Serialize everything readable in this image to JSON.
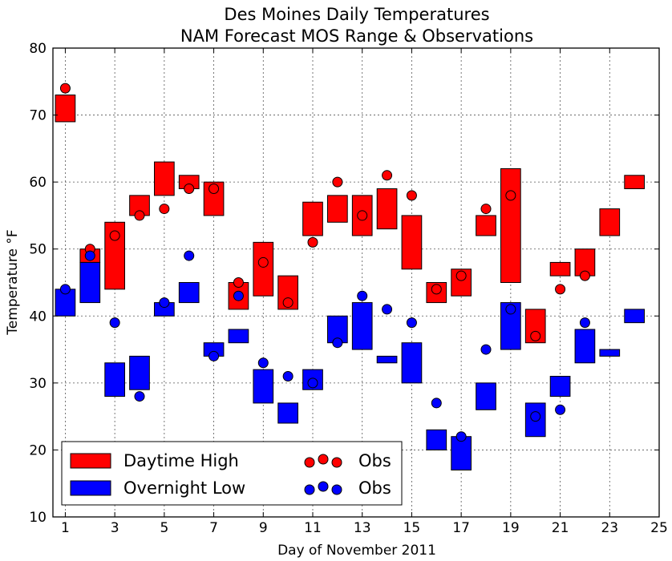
{
  "chart_data": {
    "type": "range-bar-scatter",
    "title": "Des Moines Daily Temperatures",
    "subtitle": "NAM Forecast MOS Range & Observations",
    "xlabel": "Day of November 2011",
    "ylabel": "Temperature °F",
    "xlim": [
      0.5,
      25
    ],
    "ylim": [
      10,
      80
    ],
    "xticks": [
      1,
      3,
      5,
      7,
      9,
      11,
      13,
      15,
      17,
      19,
      21,
      23,
      25
    ],
    "yticks": [
      10,
      20,
      30,
      40,
      50,
      60,
      70,
      80
    ],
    "grid": true,
    "legend_position": "lower-left",
    "legend": {
      "high_label": "Daytime High",
      "low_label": "Overnight Low",
      "high_obs_label": "Obs",
      "low_obs_label": "Obs"
    },
    "colors": {
      "high": "#ff0000",
      "low": "#0000ff"
    },
    "high_ranges": [
      {
        "day": 1,
        "min": 69,
        "max": 73
      },
      {
        "day": 2,
        "min": 48,
        "max": 50
      },
      {
        "day": 3,
        "min": 44,
        "max": 54
      },
      {
        "day": 4,
        "min": 55,
        "max": 58
      },
      {
        "day": 5,
        "min": 58,
        "max": 63
      },
      {
        "day": 6,
        "min": 59,
        "max": 61
      },
      {
        "day": 7,
        "min": 55,
        "max": 60
      },
      {
        "day": 8,
        "min": 41,
        "max": 45
      },
      {
        "day": 9,
        "min": 43,
        "max": 51
      },
      {
        "day": 10,
        "min": 41,
        "max": 46
      },
      {
        "day": 11,
        "min": 52,
        "max": 57
      },
      {
        "day": 12,
        "min": 54,
        "max": 58
      },
      {
        "day": 13,
        "min": 52,
        "max": 58
      },
      {
        "day": 14,
        "min": 53,
        "max": 59
      },
      {
        "day": 15,
        "min": 47,
        "max": 55
      },
      {
        "day": 16,
        "min": 42,
        "max": 45
      },
      {
        "day": 17,
        "min": 43,
        "max": 47
      },
      {
        "day": 18,
        "min": 52,
        "max": 55
      },
      {
        "day": 19,
        "min": 45,
        "max": 62
      },
      {
        "day": 20,
        "min": 36,
        "max": 41
      },
      {
        "day": 21,
        "min": 46,
        "max": 48
      },
      {
        "day": 22,
        "min": 46,
        "max": 50
      },
      {
        "day": 23,
        "min": 52,
        "max": 56
      },
      {
        "day": 24,
        "min": 59,
        "max": 61
      }
    ],
    "low_ranges": [
      {
        "day": 1,
        "min": 40,
        "max": 44
      },
      {
        "day": 2,
        "min": 42,
        "max": 48
      },
      {
        "day": 3,
        "min": 28,
        "max": 33
      },
      {
        "day": 4,
        "min": 29,
        "max": 34
      },
      {
        "day": 5,
        "min": 40,
        "max": 42
      },
      {
        "day": 6,
        "min": 42,
        "max": 45
      },
      {
        "day": 7,
        "min": 34,
        "max": 36
      },
      {
        "day": 8,
        "min": 36,
        "max": 38
      },
      {
        "day": 9,
        "min": 27,
        "max": 32
      },
      {
        "day": 10,
        "min": 24,
        "max": 27
      },
      {
        "day": 11,
        "min": 29,
        "max": 32
      },
      {
        "day": 12,
        "min": 36,
        "max": 40
      },
      {
        "day": 13,
        "min": 35,
        "max": 42
      },
      {
        "day": 14,
        "min": 33,
        "max": 34
      },
      {
        "day": 15,
        "min": 30,
        "max": 36
      },
      {
        "day": 16,
        "min": 20,
        "max": 23
      },
      {
        "day": 17,
        "min": 17,
        "max": 22
      },
      {
        "day": 18,
        "min": 26,
        "max": 30
      },
      {
        "day": 19,
        "min": 35,
        "max": 42
      },
      {
        "day": 20,
        "min": 22,
        "max": 27
      },
      {
        "day": 21,
        "min": 28,
        "max": 31
      },
      {
        "day": 22,
        "min": 33,
        "max": 38
      },
      {
        "day": 23,
        "min": 34,
        "max": 35
      },
      {
        "day": 24,
        "min": 39,
        "max": 41
      }
    ],
    "high_obs": [
      {
        "day": 1,
        "value": 74
      },
      {
        "day": 2,
        "value": 50
      },
      {
        "day": 3,
        "value": 52
      },
      {
        "day": 4,
        "value": 55
      },
      {
        "day": 5,
        "value": 56
      },
      {
        "day": 6,
        "value": 59
      },
      {
        "day": 7,
        "value": 59
      },
      {
        "day": 8,
        "value": 45
      },
      {
        "day": 9,
        "value": 48
      },
      {
        "day": 10,
        "value": 42
      },
      {
        "day": 11,
        "value": 51
      },
      {
        "day": 12,
        "value": 60
      },
      {
        "day": 13,
        "value": 55
      },
      {
        "day": 14,
        "value": 61
      },
      {
        "day": 15,
        "value": 58
      },
      {
        "day": 16,
        "value": 44
      },
      {
        "day": 17,
        "value": 46
      },
      {
        "day": 18,
        "value": 56
      },
      {
        "day": 19,
        "value": 58
      },
      {
        "day": 20,
        "value": 37
      },
      {
        "day": 21,
        "value": 44
      },
      {
        "day": 22,
        "value": 46
      }
    ],
    "low_obs": [
      {
        "day": 1,
        "value": 44
      },
      {
        "day": 2,
        "value": 49
      },
      {
        "day": 3,
        "value": 39
      },
      {
        "day": 4,
        "value": 28
      },
      {
        "day": 5,
        "value": 42
      },
      {
        "day": 6,
        "value": 49
      },
      {
        "day": 7,
        "value": 34
      },
      {
        "day": 8,
        "value": 43
      },
      {
        "day": 9,
        "value": 33
      },
      {
        "day": 10,
        "value": 31
      },
      {
        "day": 11,
        "value": 30
      },
      {
        "day": 12,
        "value": 36
      },
      {
        "day": 13,
        "value": 43
      },
      {
        "day": 14,
        "value": 41
      },
      {
        "day": 15,
        "value": 39
      },
      {
        "day": 16,
        "value": 27
      },
      {
        "day": 17,
        "value": 22
      },
      {
        "day": 18,
        "value": 35
      },
      {
        "day": 19,
        "value": 41
      },
      {
        "day": 20,
        "value": 25
      },
      {
        "day": 21,
        "value": 26
      },
      {
        "day": 22,
        "value": 39
      }
    ]
  }
}
